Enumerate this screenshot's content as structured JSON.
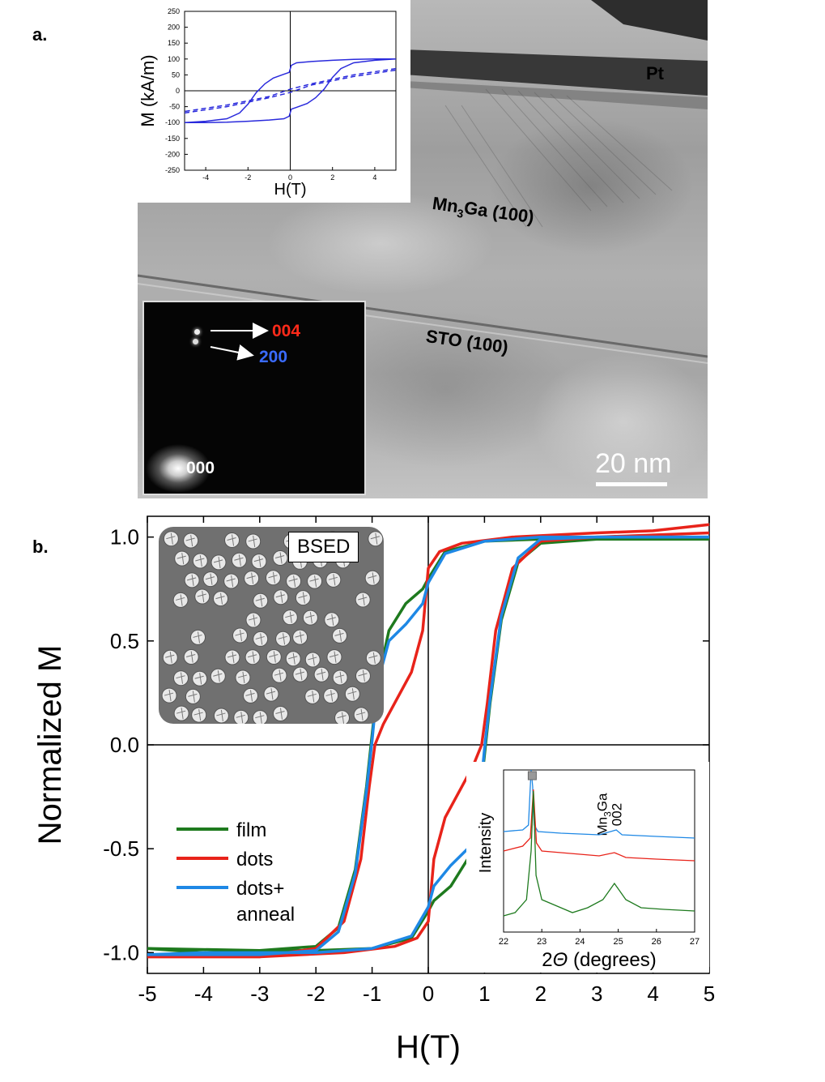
{
  "panel_a": {
    "label": "a.",
    "tem_labels": {
      "pt": "Pt",
      "mn3ga_prefix": "Mn",
      "mn3ga_sub": "3",
      "mn3ga_suffix": "Ga (100)",
      "sto": "STO (100)",
      "scale_bar": "20 nm"
    },
    "diffraction": {
      "spot_004": "004",
      "spot_200": "200",
      "spot_000": "000",
      "color_004": "#ff2a1a",
      "color_200": "#3a6bff"
    }
  },
  "panel_b": {
    "label": "b.",
    "bsed_label": "BSED"
  },
  "chart_data": [
    {
      "type": "line",
      "id": "inset_a_hysteresis",
      "xlabel": "H(T)",
      "ylabel": "M (kA/m)",
      "xlim": [
        -5,
        5
      ],
      "ylim": [
        -250,
        250
      ],
      "xticks": [
        -4,
        -2,
        0,
        2,
        4
      ],
      "yticks": [
        -250,
        -200,
        -150,
        -100,
        -50,
        0,
        50,
        100,
        150,
        200,
        250
      ],
      "color": "#2a2adc",
      "series": [
        {
          "style": "solid",
          "x": [
            -5,
            -4,
            -3,
            -2.4,
            -2,
            -1.6,
            -1.2,
            -0.8,
            -0.3,
            -0.05,
            0.05,
            0.3,
            1,
            2,
            3,
            4,
            5
          ],
          "y": [
            -100,
            -96,
            -88,
            -70,
            -42,
            -5,
            22,
            40,
            52,
            58,
            80,
            88,
            92,
            96,
            99,
            100,
            100
          ]
        },
        {
          "style": "solid",
          "x": [
            5,
            4,
            3,
            2.4,
            2,
            1.6,
            1.2,
            0.8,
            0.3,
            0.05,
            -0.05,
            -0.3,
            -1,
            -2,
            -3,
            -4,
            -5
          ],
          "y": [
            100,
            96,
            88,
            70,
            42,
            5,
            -22,
            -40,
            -52,
            -58,
            -80,
            -88,
            -92,
            -96,
            -99,
            -100,
            -100
          ]
        },
        {
          "style": "dashed",
          "x": [
            -5,
            -3,
            -1,
            0,
            1,
            3,
            5
          ],
          "y": [
            -70,
            -50,
            -22,
            -5,
            18,
            45,
            65
          ]
        },
        {
          "style": "dashed",
          "x": [
            5,
            3,
            1,
            0,
            -1,
            -3,
            -5
          ],
          "y": [
            70,
            50,
            22,
            5,
            -18,
            -45,
            -65
          ]
        }
      ]
    },
    {
      "type": "line",
      "id": "main_b_hysteresis",
      "xlabel": "H(T)",
      "ylabel": "Normalized M",
      "xlim": [
        -5,
        5
      ],
      "ylim": [
        -1.1,
        1.1
      ],
      "xticks": [
        -5,
        -4,
        -3,
        -2,
        -1,
        0,
        1,
        2,
        3,
        4,
        5
      ],
      "yticks": [
        -1.0,
        -0.5,
        0.0,
        0.5,
        1.0
      ],
      "legend_position": "bottom-left",
      "series": [
        {
          "name": "film",
          "color": "#1e7a1e",
          "up": {
            "x": [
              -5,
              -3,
              -2,
              -1.6,
              -1.3,
              -1.1,
              -1.0,
              -0.9,
              -0.7,
              -0.4,
              -0.1,
              0,
              0.3,
              1,
              2,
              3,
              4,
              5
            ],
            "y": [
              -0.98,
              -0.99,
              -0.97,
              -0.88,
              -0.6,
              -0.2,
              0.05,
              0.3,
              0.55,
              0.68,
              0.75,
              0.8,
              0.93,
              0.98,
              0.99,
              0.99,
              1.0,
              0.99
            ]
          },
          "down": {
            "x": [
              5,
              3,
              2,
              1.6,
              1.3,
              1.1,
              1.0,
              0.9,
              0.7,
              0.4,
              0.1,
              0,
              -0.3,
              -1,
              -2,
              -3,
              -4,
              -5
            ],
            "y": [
              0.99,
              0.99,
              0.97,
              0.88,
              0.6,
              0.2,
              -0.05,
              -0.3,
              -0.55,
              -0.68,
              -0.75,
              -0.8,
              -0.93,
              -0.98,
              -0.99,
              -0.99,
              -1.0,
              -0.98
            ]
          }
        },
        {
          "name": "dots",
          "color": "#e8231a",
          "up": {
            "x": [
              -5,
              -3,
              -2,
              -1.5,
              -1.2,
              -1.05,
              -0.95,
              -0.8,
              -0.6,
              -0.3,
              -0.1,
              0,
              0.2,
              0.6,
              1.5,
              3,
              4,
              5
            ],
            "y": [
              -1.02,
              -1.02,
              -0.98,
              -0.85,
              -0.55,
              -0.2,
              0.0,
              0.1,
              0.2,
              0.35,
              0.55,
              0.85,
              0.93,
              0.97,
              1.0,
              1.02,
              1.03,
              1.06
            ]
          },
          "down": {
            "x": [
              5,
              3,
              2,
              1.5,
              1.2,
              1.05,
              0.95,
              0.8,
              0.6,
              0.3,
              0.1,
              0,
              -0.2,
              -0.6,
              -1.5,
              -3,
              -4,
              -5
            ],
            "y": [
              1.02,
              1.0,
              0.98,
              0.85,
              0.55,
              0.2,
              0.0,
              -0.1,
              -0.2,
              -0.35,
              -0.55,
              -0.85,
              -0.93,
              -0.97,
              -1.0,
              -1.02,
              -1.02,
              -1.02
            ]
          }
        },
        {
          "name": "dots+\nanneal",
          "color": "#1e88e5",
          "up": {
            "x": [
              -5,
              -3,
              -2,
              -1.6,
              -1.3,
              -1.1,
              -1.0,
              -0.9,
              -0.7,
              -0.4,
              -0.1,
              0,
              0.3,
              1,
              2,
              3,
              4,
              5
            ],
            "y": [
              -1.01,
              -1.01,
              -0.99,
              -0.9,
              -0.62,
              -0.22,
              0.02,
              0.3,
              0.5,
              0.58,
              0.68,
              0.78,
              0.92,
              0.98,
              1.0,
              1.0,
              1.0,
              1.0
            ]
          },
          "down": {
            "x": [
              5,
              3,
              2,
              1.6,
              1.3,
              1.1,
              1.0,
              0.9,
              0.7,
              0.4,
              0.1,
              0,
              -0.3,
              -1,
              -2,
              -3,
              -4,
              -5
            ],
            "y": [
              1.0,
              1.0,
              0.99,
              0.9,
              0.62,
              0.22,
              -0.02,
              -0.3,
              -0.5,
              -0.58,
              -0.68,
              -0.78,
              -0.92,
              -0.98,
              -1.0,
              -1.0,
              -1.0,
              -1.01
            ]
          }
        }
      ]
    },
    {
      "type": "line",
      "id": "inset_b_xrd",
      "xlabel_prefix": "2",
      "xlabel_theta": "Θ",
      "xlabel_suffix": " (degrees)",
      "ylabel": "Intensity",
      "annotation_prefix": "Mn",
      "annotation_sub": "3",
      "annotation_suffix": "Ga",
      "annotation_line2": "002",
      "xlim": [
        22,
        27
      ],
      "xticks": [
        22,
        23,
        24,
        25,
        26,
        27
      ],
      "marker_x": 22.75,
      "series": [
        {
          "color": "#1e88e5",
          "x": [
            22,
            22.5,
            22.65,
            22.72,
            22.76,
            22.8,
            22.9,
            23.5,
            24.5,
            24.8,
            24.95,
            25.1,
            26,
            27
          ],
          "y": [
            0.62,
            0.63,
            0.66,
            1.0,
            0.9,
            0.66,
            0.62,
            0.61,
            0.6,
            0.62,
            0.63,
            0.6,
            0.59,
            0.58
          ]
        },
        {
          "color": "#e8231a",
          "x": [
            22,
            22.5,
            22.7,
            22.78,
            22.86,
            23,
            23.5,
            24,
            24.5,
            24.9,
            25.2,
            26,
            27
          ],
          "y": [
            0.5,
            0.53,
            0.58,
            0.88,
            0.55,
            0.5,
            0.49,
            0.48,
            0.47,
            0.49,
            0.46,
            0.45,
            0.44
          ]
        },
        {
          "color": "#1e7a1e",
          "x": [
            22,
            22.3,
            22.6,
            22.72,
            22.78,
            22.85,
            23,
            23.4,
            23.8,
            24.2,
            24.6,
            24.9,
            25.2,
            25.6,
            26.2,
            27
          ],
          "y": [
            0.1,
            0.12,
            0.2,
            0.5,
            0.87,
            0.35,
            0.2,
            0.16,
            0.12,
            0.15,
            0.2,
            0.3,
            0.2,
            0.15,
            0.14,
            0.13
          ]
        }
      ]
    }
  ]
}
